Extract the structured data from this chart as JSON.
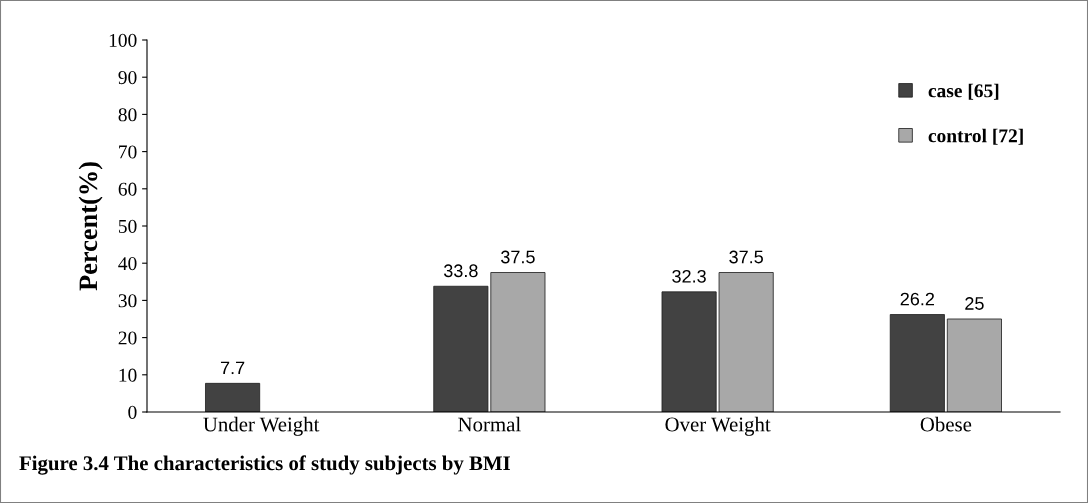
{
  "chart_data": {
    "type": "bar",
    "title": "Figure 3.4 The characteristics of study subjects by BMI",
    "ylabel": "Percent(%)",
    "categories": [
      "Under Weight",
      "Normal",
      "Over Weight",
      "Obese"
    ],
    "series": [
      {
        "name": "case [65]",
        "color": "#424242",
        "values": [
          7.7,
          33.8,
          32.3,
          26.2
        ]
      },
      {
        "name": "control [72]",
        "color": "#a8a8a8",
        "values": [
          null,
          37.5,
          37.5,
          25
        ]
      }
    ],
    "ylim": [
      0,
      100
    ],
    "yticks": [
      0,
      10,
      20,
      30,
      40,
      50,
      60,
      70,
      80,
      90,
      100
    ],
    "grid": false,
    "legend": "top right",
    "data_labels": true
  }
}
